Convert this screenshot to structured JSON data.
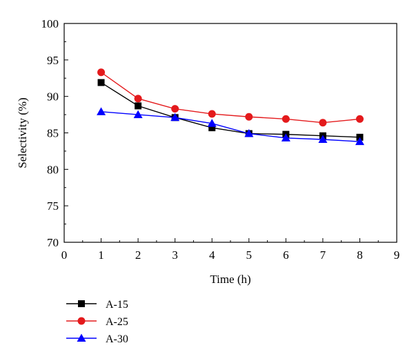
{
  "chart_data": {
    "type": "line",
    "title": "",
    "xlabel": "Time (h)",
    "ylabel": "Selectivity (%)",
    "xlim": [
      0,
      9
    ],
    "ylim": [
      70,
      100
    ],
    "xticks": [
      0,
      1,
      2,
      3,
      4,
      5,
      6,
      7,
      8,
      9
    ],
    "yticks": [
      70,
      75,
      80,
      85,
      90,
      95,
      100
    ],
    "grid": false,
    "legend_position": "below-left",
    "x": [
      1,
      2,
      3,
      4,
      5,
      6,
      7,
      8
    ],
    "series": [
      {
        "name": "A-15",
        "color": "#000000",
        "marker": "square",
        "values": [
          91.9,
          88.7,
          87.1,
          85.7,
          84.9,
          84.8,
          84.6,
          84.4
        ]
      },
      {
        "name": "A-25",
        "color": "#e41a1c",
        "marker": "circle",
        "values": [
          93.3,
          89.7,
          88.3,
          87.6,
          87.2,
          86.9,
          86.4,
          86.9
        ]
      },
      {
        "name": "A-30",
        "color": "#0000ff",
        "marker": "triangle",
        "values": [
          87.9,
          87.5,
          87.1,
          86.3,
          84.9,
          84.3,
          84.1,
          83.8
        ]
      }
    ]
  }
}
